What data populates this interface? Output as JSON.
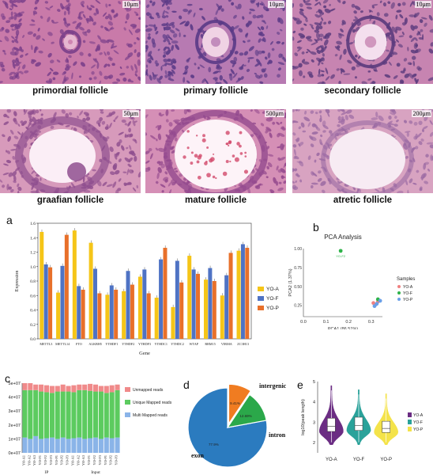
{
  "micrographs": [
    {
      "label": "primordial follicle",
      "scale": "10μm",
      "bg": "#c97aa9",
      "cell": "#7a3f8a",
      "core": "#e6b6d0"
    },
    {
      "label": "primary follicle",
      "scale": "10μm",
      "bg": "#b77ab2",
      "cell": "#5a3a86",
      "core": "#f0d2e4"
    },
    {
      "label": "secondary follicle",
      "scale": "10μm",
      "bg": "#c784b1",
      "cell": "#5b3b7d",
      "core": "#f4dfee"
    },
    {
      "label": "graafian follicle",
      "scale": "50μm",
      "bg": "#d79abb",
      "cell": "#8f4f8f",
      "core": "#fbeef6"
    },
    {
      "label": "mature follicle",
      "scale": "500μm",
      "bg": "#d58fb6",
      "cell": "#944a8e",
      "core": "#fdf3f8"
    },
    {
      "label": "atretic follicle",
      "scale": "200μm",
      "bg": "#d8a3c1",
      "cell": "#9b6aa3",
      "core": "#f7ebf3"
    }
  ],
  "panels": {
    "a": "a",
    "b": "b",
    "c": "c",
    "d": "d",
    "e": "e"
  },
  "chart_data": [
    {
      "type": "bar",
      "panel": "a",
      "categories": [
        "METTL3",
        "METTL14",
        "FTO",
        "ALKBH5",
        "YTHDF1",
        "YTHDF2",
        "YTHDF3",
        "YTHDC1",
        "YTHDC2",
        "WTAP",
        "RBM15",
        "VIRMA",
        "ZC3H13"
      ],
      "series": [
        {
          "name": "YO-A",
          "color": "#f5c518",
          "values": [
            1.48,
            0.64,
            1.5,
            1.33,
            0.61,
            0.66,
            0.86,
            0.57,
            0.44,
            1.15,
            0.82,
            0.6,
            1.22
          ]
        },
        {
          "name": "YO-F",
          "color": "#4f73c4",
          "values": [
            1.03,
            1.01,
            0.73,
            0.97,
            0.74,
            0.94,
            0.96,
            1.1,
            1.08,
            0.96,
            0.98,
            0.88,
            1.31
          ]
        },
        {
          "name": "YO-P",
          "color": "#e8702a",
          "values": [
            0.99,
            1.44,
            0.68,
            0.63,
            0.68,
            0.75,
            0.63,
            1.26,
            0.78,
            0.9,
            0.8,
            1.19,
            1.26
          ]
        }
      ],
      "ylabel": "Expression",
      "xlabel": "Gene",
      "ylim": [
        0,
        1.6
      ],
      "yticks": [
        "0.0",
        "0.2",
        "0.4",
        "0.6",
        "0.8",
        "1.0",
        "1.2",
        "1.4",
        "1.6"
      ],
      "legend": "right"
    },
    {
      "type": "scatter",
      "panel": "b",
      "title": "PCA Analysis",
      "xlabel": "PCA1 (86.51%)",
      "ylabel": "PCA2 (1.37%)",
      "xlim": [
        0,
        0.35
      ],
      "ylim": [
        0.1,
        1.0
      ],
      "xticks": [
        "0.0",
        "0.1",
        "0.2",
        "0.3"
      ],
      "yticks": [
        "0.25",
        "0.50",
        "0.75",
        "1.00"
      ],
      "legend_title": "Samples",
      "series": [
        {
          "name": "YO-A",
          "color": "#f08080",
          "points": [
            [
              0.31,
              0.28
            ],
            [
              0.33,
              0.3
            ],
            [
              0.32,
              0.26
            ]
          ]
        },
        {
          "name": "YO-F",
          "color": "#2fb34a",
          "points": [
            [
              0.165,
              0.97
            ],
            [
              0.33,
              0.33
            ]
          ]
        },
        {
          "name": "YO-P",
          "color": "#6aa0e8",
          "points": [
            [
              0.325,
              0.27
            ],
            [
              0.34,
              0.31
            ],
            [
              0.315,
              0.24
            ]
          ]
        }
      ],
      "annotations": [
        "YO-F2"
      ]
    },
    {
      "type": "bar",
      "panel": "c",
      "stacked": true,
      "categories": [
        "YO-A1",
        "YO-A2",
        "YO-A3",
        "YO-F1",
        "YO-F2",
        "YO-F3",
        "YO-P1",
        "YO-P2",
        "YO-P3",
        "YO-A1",
        "YO-A2",
        "YO-A3",
        "YO-F1",
        "YO-F2",
        "YO-F3",
        "YO-P1",
        "YO-P2",
        "YO-P3"
      ],
      "groups": [
        "IP",
        "Input"
      ],
      "series": [
        {
          "name": "Multi Mapped reads",
          "color": "#8ab4e8",
          "values": [
            11000000.0,
            10000000.0,
            12000000.0,
            10000000.0,
            10500000.0,
            11000000.0,
            10000000.0,
            11000000.0,
            10000000.0,
            10500000.0,
            11000000.0,
            10000000.0,
            10500000.0,
            11000000.0,
            10000000.0,
            11000000.0,
            10500000.0,
            11000000.0
          ]
        },
        {
          "name": "Unique Mapped reads",
          "color": "#5ccb5f",
          "values": [
            34000000.0,
            35000000.0,
            33000000.0,
            34000000.0,
            33000000.0,
            32000000.0,
            34000000.0,
            33000000.0,
            34000000.0,
            33000000.0,
            34000000.0,
            35000000.0,
            34000000.0,
            33000000.0,
            34000000.0,
            32000000.0,
            33000000.0,
            34000000.0
          ]
        },
        {
          "name": "Unmapped reads",
          "color": "#f08a8a",
          "values": [
            5000000.0,
            5000000.0,
            4000000.0,
            5000000.0,
            5000000.0,
            5000000.0,
            4000000.0,
            5000000.0,
            4000000.0,
            5000000.0,
            4000000.0,
            4000000.0,
            5000000.0,
            5000000.0,
            4000000.0,
            5000000.0,
            5000000.0,
            4000000.0
          ]
        }
      ],
      "ylim": [
        0,
        50000000.0
      ],
      "yticks": [
        "0e+07",
        "1e+07",
        "2e+07",
        "3e+07",
        "4e+07",
        "5e+07"
      ],
      "legend": "right"
    },
    {
      "type": "pie",
      "panel": "d",
      "labels": [
        "exon",
        "intron",
        "intergenic"
      ],
      "values": [
        77.9,
        9.41,
        12.69
      ],
      "value_labels": [
        "77.9%",
        "9.41%",
        "12.69%"
      ],
      "colors": [
        "#2b7bbf",
        "#f07c21",
        "#2ba84a"
      ]
    },
    {
      "type": "violin",
      "panel": "e",
      "categories": [
        "YO-A",
        "YO-F",
        "YO-P"
      ],
      "colors": [
        "#6b2d83",
        "#2aa29a",
        "#f4e34a"
      ],
      "ylabel": "log10(peak length)",
      "ylim": [
        1.5,
        5
      ],
      "yticks": [
        "2",
        "3",
        "4",
        "5"
      ],
      "median": [
        2.8,
        2.85,
        2.7
      ],
      "q1": [
        2.55,
        2.6,
        2.5
      ],
      "q3": [
        3.2,
        3.25,
        3.05
      ],
      "max": [
        4.8,
        4.6,
        4.4
      ],
      "min": [
        1.9,
        1.9,
        1.9
      ],
      "legend": "right"
    }
  ]
}
